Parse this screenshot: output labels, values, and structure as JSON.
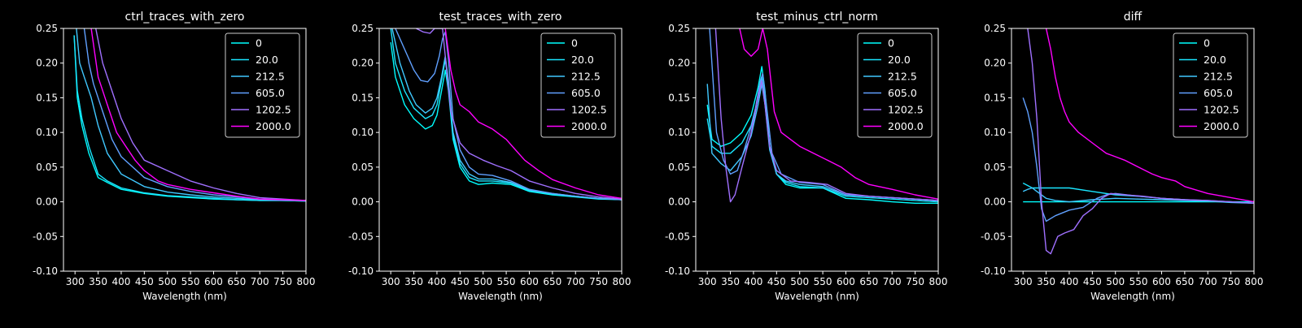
{
  "figure": {
    "background": "#000000",
    "foreground": "#ffffff"
  },
  "legend_labels": [
    "0",
    "20.0",
    "212.5",
    "605.0",
    "1202.5",
    "2000.0"
  ],
  "series_colors": [
    "#00ffff",
    "#1ae5ff",
    "#40c8ff",
    "#60a0ff",
    "#a070ff",
    "#ff00ff"
  ],
  "chart_data": [
    {
      "type": "line",
      "title": "ctrl_traces_with_zero",
      "xlabel": "Wavelength (nm)",
      "ylabel": "",
      "xlim": [
        275,
        800
      ],
      "ylim": [
        -0.1,
        0.25
      ],
      "xticks": [
        300,
        350,
        400,
        450,
        500,
        550,
        600,
        650,
        700,
        750,
        800
      ],
      "yticks": [
        -0.1,
        -0.05,
        0.0,
        0.05,
        0.1,
        0.15,
        0.2,
        0.25
      ],
      "legend": "upper-right",
      "grid": false,
      "series": [
        {
          "name": "0",
          "x": [
            298,
            305,
            315,
            330,
            350,
            370,
            400,
            450,
            500,
            550,
            600,
            650,
            700,
            750,
            800
          ],
          "y": [
            0.24,
            0.15,
            0.11,
            0.07,
            0.035,
            0.028,
            0.018,
            0.012,
            0.008,
            0.006,
            0.004,
            0.003,
            0.002,
            0.002,
            0.001
          ]
        },
        {
          "name": "20.0",
          "x": [
            298,
            305,
            315,
            330,
            350,
            370,
            400,
            450,
            500,
            550,
            600,
            650,
            700,
            750,
            800
          ],
          "y": [
            0.24,
            0.16,
            0.12,
            0.08,
            0.04,
            0.03,
            0.02,
            0.013,
            0.009,
            0.007,
            0.005,
            0.003,
            0.002,
            0.002,
            0.001
          ]
        },
        {
          "name": "212.5",
          "x": [
            303,
            310,
            320,
            335,
            350,
            370,
            400,
            450,
            500,
            550,
            600,
            650,
            700,
            750,
            800
          ],
          "y": [
            0.25,
            0.2,
            0.18,
            0.15,
            0.11,
            0.07,
            0.04,
            0.022,
            0.014,
            0.01,
            0.007,
            0.005,
            0.003,
            0.002,
            0.002
          ]
        },
        {
          "name": "605.0",
          "x": [
            320,
            330,
            340,
            360,
            380,
            400,
            450,
            500,
            550,
            600,
            650,
            700,
            750,
            800
          ],
          "y": [
            0.25,
            0.2,
            0.17,
            0.13,
            0.09,
            0.065,
            0.035,
            0.022,
            0.015,
            0.01,
            0.007,
            0.004,
            0.003,
            0.002
          ]
        },
        {
          "name": "1202.5",
          "x": [
            345,
            360,
            380,
            400,
            425,
            450,
            500,
            550,
            600,
            650,
            700,
            750,
            800
          ],
          "y": [
            0.25,
            0.2,
            0.16,
            0.12,
            0.085,
            0.06,
            0.045,
            0.03,
            0.02,
            0.012,
            0.006,
            0.004,
            0.002
          ]
        },
        {
          "name": "2000.0",
          "x": [
            335,
            350,
            370,
            390,
            410,
            430,
            450,
            480,
            500,
            550,
            600,
            650,
            700,
            750,
            800
          ],
          "y": [
            0.25,
            0.18,
            0.14,
            0.1,
            0.08,
            0.06,
            0.045,
            0.03,
            0.025,
            0.018,
            0.013,
            0.008,
            0.004,
            0.003,
            0.002
          ]
        }
      ]
    },
    {
      "type": "line",
      "title": "test_traces_with_zero",
      "xlabel": "Wavelength (nm)",
      "ylabel": "",
      "xlim": [
        275,
        800
      ],
      "ylim": [
        -0.1,
        0.25
      ],
      "xticks": [
        300,
        350,
        400,
        450,
        500,
        550,
        600,
        650,
        700,
        750,
        800
      ],
      "yticks": [
        -0.1,
        -0.05,
        0.0,
        0.05,
        0.1,
        0.15,
        0.2,
        0.25
      ],
      "legend": "upper-right",
      "grid": false,
      "series": [
        {
          "name": "0",
          "x": [
            300,
            310,
            330,
            350,
            375,
            390,
            400,
            410,
            418,
            425,
            435,
            450,
            470,
            490,
            520,
            560,
            600,
            650,
            700,
            750,
            800
          ],
          "y": [
            0.23,
            0.18,
            0.14,
            0.12,
            0.105,
            0.11,
            0.125,
            0.16,
            0.19,
            0.16,
            0.09,
            0.05,
            0.03,
            0.025,
            0.027,
            0.025,
            0.015,
            0.01,
            0.007,
            0.004,
            0.003
          ]
        },
        {
          "name": "20.0",
          "x": [
            300,
            310,
            330,
            350,
            375,
            390,
            400,
            410,
            418,
            425,
            435,
            450,
            470,
            490,
            520,
            560,
            600,
            650,
            700,
            750,
            800
          ],
          "y": [
            0.25,
            0.2,
            0.16,
            0.135,
            0.12,
            0.125,
            0.14,
            0.175,
            0.205,
            0.17,
            0.095,
            0.055,
            0.035,
            0.03,
            0.03,
            0.027,
            0.016,
            0.011,
            0.008,
            0.005,
            0.003
          ]
        },
        {
          "name": "212.5",
          "x": [
            303,
            320,
            340,
            355,
            375,
            390,
            400,
            410,
            418,
            425,
            435,
            450,
            470,
            490,
            520,
            560,
            600,
            650,
            700,
            750,
            800
          ],
          "y": [
            0.25,
            0.2,
            0.16,
            0.14,
            0.128,
            0.135,
            0.15,
            0.18,
            0.21,
            0.175,
            0.1,
            0.06,
            0.04,
            0.033,
            0.033,
            0.028,
            0.017,
            0.012,
            0.008,
            0.005,
            0.003
          ]
        },
        {
          "name": "605.0",
          "x": [
            310,
            330,
            350,
            365,
            380,
            395,
            405,
            412,
            418,
            425,
            435,
            450,
            470,
            490,
            520,
            560,
            600,
            650,
            700,
            750,
            800
          ],
          "y": [
            0.25,
            0.22,
            0.19,
            0.175,
            0.173,
            0.185,
            0.21,
            0.235,
            0.245,
            0.205,
            0.12,
            0.075,
            0.05,
            0.04,
            0.038,
            0.03,
            0.018,
            0.012,
            0.008,
            0.005,
            0.003
          ]
        },
        {
          "name": "1202.5",
          "x": [
            355,
            370,
            385,
            395,
            405,
            412,
            430,
            450,
            470,
            500,
            530,
            560,
            600,
            650,
            700,
            750,
            800
          ],
          "y": [
            0.25,
            0.245,
            0.243,
            0.25,
            0.25,
            0.25,
            0.13,
            0.085,
            0.07,
            0.06,
            0.052,
            0.045,
            0.03,
            0.02,
            0.012,
            0.007,
            0.004
          ]
        },
        {
          "name": "2000.0",
          "x": [
            418,
            430,
            440,
            450,
            470,
            490,
            520,
            550,
            570,
            590,
            620,
            650,
            700,
            750,
            800
          ],
          "y": [
            0.25,
            0.19,
            0.16,
            0.14,
            0.13,
            0.115,
            0.105,
            0.09,
            0.075,
            0.06,
            0.045,
            0.032,
            0.02,
            0.01,
            0.005
          ]
        }
      ]
    },
    {
      "type": "line",
      "title": "test_minus_ctrl_norm",
      "xlabel": "Wavelength (nm)",
      "ylabel": "",
      "xlim": [
        275,
        800
      ],
      "ylim": [
        -0.1,
        0.25
      ],
      "xticks": [
        300,
        350,
        400,
        450,
        500,
        550,
        600,
        650,
        700,
        750,
        800
      ],
      "yticks": [
        -0.1,
        -0.05,
        0.0,
        0.05,
        0.1,
        0.15,
        0.2,
        0.25
      ],
      "legend": "upper-right",
      "grid": false,
      "series": [
        {
          "name": "0",
          "x": [
            300,
            310,
            330,
            350,
            375,
            395,
            410,
            418,
            425,
            435,
            450,
            470,
            500,
            550,
            600,
            650,
            700,
            750,
            800
          ],
          "y": [
            0.14,
            0.09,
            0.08,
            0.085,
            0.1,
            0.125,
            0.165,
            0.195,
            0.16,
            0.08,
            0.04,
            0.025,
            0.02,
            0.02,
            0.005,
            0.003,
            0.0,
            -0.002,
            -0.002
          ]
        },
        {
          "name": "20.0",
          "x": [
            300,
            310,
            330,
            350,
            375,
            395,
            410,
            418,
            425,
            435,
            450,
            470,
            500,
            550,
            600,
            650,
            700,
            750,
            800
          ],
          "y": [
            0.12,
            0.08,
            0.07,
            0.07,
            0.085,
            0.11,
            0.15,
            0.18,
            0.15,
            0.08,
            0.04,
            0.028,
            0.022,
            0.02,
            0.008,
            0.006,
            0.004,
            0.002,
            0.0
          ]
        },
        {
          "name": "212.5",
          "x": [
            300,
            310,
            330,
            350,
            375,
            395,
            410,
            418,
            425,
            435,
            450,
            470,
            500,
            550,
            600,
            650,
            700,
            750,
            800
          ],
          "y": [
            0.17,
            0.07,
            0.055,
            0.045,
            0.065,
            0.095,
            0.14,
            0.17,
            0.14,
            0.075,
            0.04,
            0.03,
            0.025,
            0.022,
            0.01,
            0.008,
            0.006,
            0.004,
            0.002
          ]
        },
        {
          "name": "605.0",
          "x": [
            305,
            320,
            335,
            350,
            365,
            380,
            400,
            415,
            420,
            428,
            440,
            460,
            500,
            550,
            600,
            650,
            700,
            750,
            800
          ],
          "y": [
            0.25,
            0.1,
            0.06,
            0.04,
            0.045,
            0.075,
            0.12,
            0.175,
            0.185,
            0.14,
            0.07,
            0.04,
            0.028,
            0.025,
            0.01,
            0.008,
            0.006,
            0.004,
            0.002
          ]
        },
        {
          "name": "1202.5",
          "x": [
            318,
            330,
            340,
            350,
            360,
            375,
            395,
            410,
            418,
            425,
            435,
            450,
            480,
            520,
            560,
            600,
            650,
            700,
            750,
            800
          ],
          "y": [
            0.25,
            0.12,
            0.05,
            0.0,
            0.01,
            0.05,
            0.1,
            0.15,
            0.175,
            0.14,
            0.08,
            0.045,
            0.03,
            0.028,
            0.025,
            0.012,
            0.008,
            0.006,
            0.004,
            0.002
          ]
        },
        {
          "name": "2000.0",
          "x": [
            370,
            380,
            395,
            410,
            420,
            430,
            445,
            460,
            480,
            500,
            530,
            560,
            590,
            620,
            650,
            700,
            750,
            800
          ],
          "y": [
            0.25,
            0.22,
            0.21,
            0.22,
            0.25,
            0.22,
            0.13,
            0.1,
            0.09,
            0.08,
            0.07,
            0.06,
            0.05,
            0.035,
            0.025,
            0.018,
            0.01,
            0.004
          ]
        }
      ]
    },
    {
      "type": "line",
      "title": "diff",
      "xlabel": "Wavelength (nm)",
      "ylabel": "",
      "xlim": [
        275,
        800
      ],
      "ylim": [
        -0.1,
        0.25
      ],
      "xticks": [
        300,
        350,
        400,
        450,
        500,
        550,
        600,
        650,
        700,
        750,
        800
      ],
      "yticks": [
        -0.1,
        -0.05,
        0.0,
        0.05,
        0.1,
        0.15,
        0.2,
        0.25
      ],
      "legend": "upper-right",
      "grid": false,
      "series": [
        {
          "name": "0",
          "x": [
            300,
            800
          ],
          "y": [
            0.0,
            0.0
          ]
        },
        {
          "name": "20.0",
          "x": [
            300,
            320,
            350,
            400,
            450,
            500,
            550,
            600,
            650,
            700,
            750,
            800
          ],
          "y": [
            0.027,
            0.02,
            0.02,
            0.02,
            0.015,
            0.01,
            0.008,
            0.005,
            0.003,
            0.001,
            0.0,
            -0.002
          ]
        },
        {
          "name": "212.5",
          "x": [
            300,
            310,
            320,
            330,
            350,
            370,
            400,
            450,
            500,
            550,
            600,
            650,
            700,
            750,
            800
          ],
          "y": [
            0.015,
            0.018,
            0.02,
            0.015,
            0.005,
            0.002,
            0.0,
            0.003,
            0.005,
            0.004,
            0.003,
            0.002,
            0.001,
            -0.001,
            -0.002
          ]
        },
        {
          "name": "605.0",
          "x": [
            300,
            310,
            320,
            330,
            340,
            350,
            370,
            400,
            430,
            460,
            480,
            500,
            550,
            600,
            650,
            700,
            750,
            800
          ],
          "y": [
            0.15,
            0.13,
            0.1,
            0.05,
            -0.01,
            -0.028,
            -0.02,
            -0.012,
            -0.008,
            0.005,
            0.01,
            0.012,
            0.008,
            0.005,
            0.003,
            0.002,
            0.0,
            -0.002
          ]
        },
        {
          "name": "1202.5",
          "x": [
            310,
            320,
            330,
            340,
            350,
            360,
            375,
            390,
            410,
            430,
            450,
            470,
            490,
            520,
            560,
            600,
            650,
            700,
            750,
            800
          ],
          "y": [
            0.25,
            0.2,
            0.12,
            0.0,
            -0.07,
            -0.075,
            -0.05,
            -0.045,
            -0.04,
            -0.02,
            -0.01,
            0.005,
            0.012,
            0.01,
            0.008,
            0.005,
            0.003,
            0.002,
            0.0,
            -0.002
          ]
        },
        {
          "name": "2000.0",
          "x": [
            350,
            360,
            370,
            380,
            390,
            400,
            420,
            450,
            480,
            500,
            520,
            550,
            580,
            600,
            630,
            650,
            700,
            750,
            800
          ],
          "y": [
            0.25,
            0.22,
            0.18,
            0.15,
            0.13,
            0.115,
            0.1,
            0.085,
            0.07,
            0.065,
            0.06,
            0.05,
            0.04,
            0.035,
            0.03,
            0.022,
            0.012,
            0.006,
            0.0
          ]
        }
      ]
    }
  ]
}
